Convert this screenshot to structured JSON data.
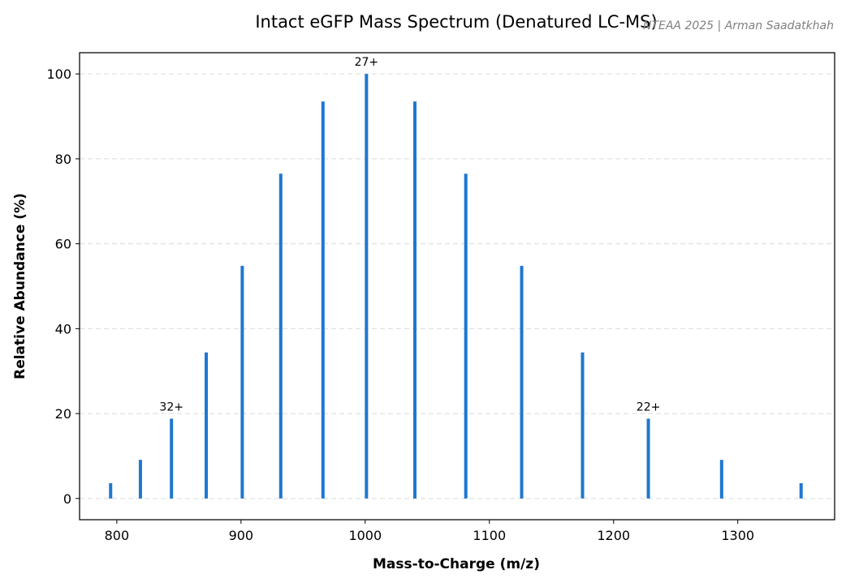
{
  "chart_data": {
    "type": "bar",
    "title": "Intact eGFP Mass Spectrum (Denatured LC-MS)",
    "watermark": "NTEAA 2025 | Arman Saadatkhah",
    "xlabel": "Mass-to-Charge (m/z)",
    "ylabel": "Relative Abundance (%)",
    "xlim": [
      770,
      1378
    ],
    "ylim": [
      -5,
      105
    ],
    "xticks": [
      800,
      900,
      1000,
      1100,
      1200,
      1300
    ],
    "yticks": [
      0,
      20,
      40,
      60,
      80,
      100
    ],
    "grid": "y-dashed",
    "bar_color": "#1f77d0",
    "points": [
      {
        "mz": 795,
        "abundance": 3.6
      },
      {
        "mz": 819,
        "abundance": 9.1
      },
      {
        "mz": 844,
        "abundance": 18.8
      },
      {
        "mz": 872,
        "abundance": 34.4
      },
      {
        "mz": 901,
        "abundance": 54.8
      },
      {
        "mz": 932,
        "abundance": 76.5
      },
      {
        "mz": 966,
        "abundance": 93.5
      },
      {
        "mz": 1001,
        "abundance": 100
      },
      {
        "mz": 1040,
        "abundance": 93.5
      },
      {
        "mz": 1081,
        "abundance": 76.5
      },
      {
        "mz": 1126,
        "abundance": 54.8
      },
      {
        "mz": 1175,
        "abundance": 34.4
      },
      {
        "mz": 1228,
        "abundance": 18.8
      },
      {
        "mz": 1287,
        "abundance": 9.1
      },
      {
        "mz": 1351,
        "abundance": 3.6
      }
    ],
    "annotations": [
      {
        "text": "32+",
        "mz": 844,
        "abundance": 18.8
      },
      {
        "text": "27+",
        "mz": 1001,
        "abundance": 100
      },
      {
        "text": "22+",
        "mz": 1228,
        "abundance": 18.8
      }
    ]
  }
}
